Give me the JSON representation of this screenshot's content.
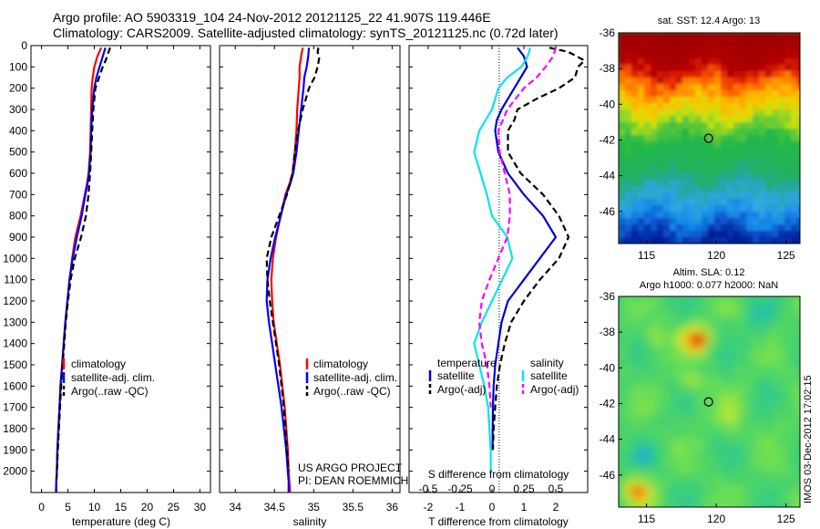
{
  "header": {
    "line1": "Argo profile: AO 5903319_104 24-Nov-2012 20121125_22 41.907S 119.446E",
    "line2": "Climatology: CARS2009. Satellite-adjusted climatology: synTS_20121125.nc (0.72d later)"
  },
  "colors": {
    "climatology": "#ff0000",
    "satellite": "#0000ff",
    "argo": "#000000",
    "t_satellite": "#0000cc",
    "s_satellite": "#00e5ee",
    "s_argo": "#ff00ff"
  },
  "chart_data": [
    {
      "type": "line",
      "xlabel": "temperature (deg C)",
      "ylabel": "",
      "xlim": [
        -2,
        32
      ],
      "ylim": [
        2100,
        0
      ],
      "xticks": [
        0,
        5,
        10,
        15,
        20,
        25,
        30
      ],
      "yticks": [
        0,
        100,
        200,
        300,
        400,
        500,
        600,
        700,
        800,
        900,
        1000,
        1100,
        1200,
        1300,
        1400,
        1500,
        1600,
        1700,
        1800,
        1900,
        2000
      ],
      "legend": {
        "position": "lower-middle",
        "entries": [
          "climatology",
          "satellite-adj. clim.",
          "Argo(..raw -QC)"
        ]
      },
      "series": [
        {
          "name": "climatology",
          "style": "solid",
          "color": "#ff0000",
          "x": [
            11.3,
            10.6,
            10.0,
            9.7,
            9.5,
            9.4,
            9.3,
            9.2,
            8.9,
            8.6,
            8.2,
            7.4,
            6.4,
            5.8,
            5.3,
            4.9,
            4.5,
            4.2,
            3.9,
            3.6,
            3.4,
            3.2,
            3.0,
            2.9,
            2.8,
            2.7
          ],
          "y": [
            10,
            50,
            100,
            150,
            200,
            300,
            400,
            500,
            600,
            650,
            700,
            800,
            900,
            1000,
            1100,
            1200,
            1300,
            1400,
            1500,
            1600,
            1700,
            1800,
            1900,
            2000,
            2050,
            2100
          ]
        },
        {
          "name": "satellite-adj. clim.",
          "style": "solid",
          "color": "#0000ff",
          "x": [
            12.1,
            11.6,
            11.0,
            10.4,
            10.0,
            9.6,
            9.4,
            9.3,
            9.0,
            8.7,
            8.3,
            7.6,
            6.7,
            5.9,
            5.3,
            4.9,
            4.5,
            4.2,
            3.9,
            3.6,
            3.4,
            3.2,
            3.0,
            2.9,
            2.8,
            2.8
          ],
          "y": [
            10,
            50,
            100,
            150,
            200,
            300,
            400,
            500,
            600,
            650,
            700,
            800,
            900,
            1000,
            1100,
            1200,
            1300,
            1400,
            1500,
            1600,
            1700,
            1800,
            1900,
            2000,
            2050,
            2100
          ]
        },
        {
          "name": "Argo(..raw -QC)",
          "style": "dashed",
          "color": "#000000",
          "x": [
            13.0,
            12.7,
            12.3,
            11.6,
            10.9,
            10.2,
            9.8,
            9.6,
            9.4,
            9.2,
            8.9,
            8.4,
            7.5,
            6.3,
            5.5,
            5.0,
            4.6,
            4.3,
            4.0,
            3.7,
            3.5,
            3.3,
            3.1,
            2.9,
            2.8
          ],
          "y": [
            10,
            30,
            60,
            100,
            150,
            200,
            300,
            400,
            500,
            600,
            700,
            800,
            900,
            1000,
            1100,
            1200,
            1300,
            1400,
            1500,
            1600,
            1700,
            1800,
            1900,
            2000,
            2050
          ]
        }
      ]
    },
    {
      "type": "line",
      "xlabel": "salinity",
      "ylabel": "",
      "xlim": [
        33.8,
        36.1
      ],
      "ylim": [
        2100,
        0
      ],
      "xticks": [
        34,
        34.5,
        35,
        35.5,
        36
      ],
      "legend": {
        "position": "lower-middle",
        "entries": [
          "climatology",
          "satellite-adj. clim.",
          "Argo(..raw -QC)"
        ]
      },
      "annotation": [
        "US ARGO PROJECT",
        "PI: DEAN ROEMMICH"
      ],
      "series": [
        {
          "name": "climatology",
          "style": "solid",
          "color": "#ff0000",
          "x": [
            34.86,
            34.84,
            34.82,
            34.82,
            34.81,
            34.79,
            34.78,
            34.76,
            34.73,
            34.69,
            34.64,
            34.58,
            34.52,
            34.48,
            34.46,
            34.47,
            34.49,
            34.53,
            34.57,
            34.6,
            34.63,
            34.65,
            34.67,
            34.68,
            34.69,
            34.7
          ],
          "y": [
            10,
            50,
            100,
            150,
            200,
            300,
            400,
            500,
            600,
            650,
            700,
            800,
            900,
            1000,
            1100,
            1200,
            1300,
            1400,
            1500,
            1600,
            1700,
            1800,
            1900,
            2000,
            2050,
            2100
          ]
        },
        {
          "name": "satellite-adj. clim.",
          "style": "solid",
          "color": "#0000ff",
          "x": [
            34.94,
            34.93,
            34.91,
            34.88,
            34.87,
            34.84,
            34.81,
            34.78,
            34.74,
            34.7,
            34.65,
            34.58,
            34.51,
            34.45,
            34.41,
            34.4,
            34.43,
            34.47,
            34.51,
            34.55,
            34.59,
            34.62,
            34.65,
            34.67,
            34.68,
            34.68
          ],
          "y": [
            10,
            50,
            100,
            150,
            200,
            300,
            400,
            500,
            600,
            650,
            700,
            800,
            900,
            1000,
            1100,
            1200,
            1300,
            1400,
            1500,
            1600,
            1700,
            1800,
            1900,
            2000,
            2050,
            2100
          ]
        },
        {
          "name": "Argo(..raw -QC)",
          "style": "dashed",
          "color": "#000000",
          "x": [
            35.06,
            35.05,
            35.07,
            35.05,
            35.01,
            34.94,
            34.86,
            34.8,
            34.76,
            34.73,
            34.66,
            34.56,
            34.46,
            34.4,
            34.41,
            34.44,
            34.48,
            34.52,
            34.56,
            34.59,
            34.62,
            34.64,
            34.66,
            34.68
          ],
          "y": [
            10,
            30,
            60,
            100,
            150,
            200,
            300,
            400,
            500,
            600,
            700,
            800,
            900,
            1000,
            1100,
            1200,
            1300,
            1400,
            1500,
            1600,
            1700,
            1800,
            1900,
            2000
          ]
        }
      ]
    },
    {
      "type": "line",
      "xlabel": "T difference from climatology",
      "xlabel_top": "S difference from climatology",
      "ylabel": "",
      "xlim": [
        -2.6,
        3.0
      ],
      "ylim": [
        2100,
        0
      ],
      "xticks": [
        -2,
        -1,
        0,
        1,
        2
      ],
      "xticks_secondary": {
        "labels": [
          "-0.5",
          "-0.25",
          "0",
          "0.25",
          "0.5"
        ],
        "values": [
          -0.5,
          -0.25,
          0,
          0.25,
          0.5
        ],
        "t_per_s": 4
      },
      "legend": {
        "position": "lower",
        "groups": [
          {
            "title": "temperature",
            "entries": [
              "satellite",
              "Argo(-adj)"
            ]
          },
          {
            "title": "salinity",
            "entries": [
              "satellite",
              "Argo(-adj)"
            ]
          }
        ]
      },
      "series": [
        {
          "name": "satellite",
          "group": "temperature",
          "style": "solid",
          "color": "#0000cc",
          "x": [
            0.8,
            1.0,
            1.1,
            0.9,
            0.7,
            0.5,
            0.3,
            0.15,
            0.1,
            0.2,
            0.5,
            1.0,
            1.6,
            2.0,
            1.5,
            1.0,
            0.5,
            0.3,
            0.2,
            0.1,
            0.05,
            0.03,
            0.02,
            0.02
          ],
          "y": [
            10,
            50,
            100,
            150,
            200,
            250,
            300,
            350,
            400,
            500,
            600,
            700,
            800,
            900,
            1000,
            1100,
            1200,
            1300,
            1400,
            1500,
            1600,
            1700,
            1800,
            1900
          ]
        },
        {
          "name": "Argo(-adj)",
          "group": "temperature",
          "style": "dashed",
          "color": "#000000",
          "x": [
            1.8,
            2.4,
            2.9,
            2.7,
            2.6,
            2.1,
            1.4,
            0.8,
            0.7,
            0.5,
            0.5,
            0.9,
            1.6,
            2.1,
            2.4,
            2.1,
            1.5,
            1.0,
            0.6,
            0.4,
            0.25,
            0.15,
            0.1,
            0.05,
            0.03
          ],
          "y": [
            10,
            30,
            70,
            100,
            150,
            200,
            250,
            300,
            350,
            400,
            500,
            600,
            700,
            800,
            900,
            1000,
            1100,
            1200,
            1300,
            1400,
            1500,
            1600,
            1700,
            1800,
            1900
          ]
        },
        {
          "name": "satellite",
          "group": "salinity",
          "style": "solid",
          "color": "#00e5ee",
          "x": [
            0.3,
            0.28,
            0.23,
            0.12,
            0.05,
            0.0,
            -0.1,
            -0.14,
            -0.09,
            -0.04,
            0.0,
            0.12,
            0.16,
            0.08,
            0.0,
            -0.08,
            -0.14,
            -0.1,
            -0.06,
            -0.03,
            -0.02,
            -0.01,
            -0.01
          ],
          "y": [
            10,
            50,
            100,
            150,
            200,
            300,
            400,
            500,
            600,
            700,
            800,
            900,
            1000,
            1100,
            1200,
            1300,
            1400,
            1500,
            1600,
            1700,
            1800,
            1900,
            2000
          ]
        },
        {
          "name": "Argo(-adj)",
          "group": "salinity",
          "style": "dashed",
          "color": "#ff00ff",
          "x": [
            0.5,
            0.48,
            0.42,
            0.35,
            0.25,
            0.12,
            0.05,
            0.06,
            0.1,
            0.14,
            0.14,
            0.12,
            0.05,
            -0.02,
            -0.08,
            -0.1,
            -0.08,
            -0.04,
            -0.02,
            -0.01
          ],
          "y": [
            10,
            50,
            100,
            150,
            200,
            300,
            400,
            500,
            600,
            700,
            800,
            900,
            1000,
            1100,
            1200,
            1300,
            1400,
            1500,
            1600,
            1700
          ]
        }
      ]
    },
    {
      "type": "heatmap",
      "title": "sat. SST: 12.4  Argo: 13",
      "xlim": [
        113,
        126
      ],
      "ylim": [
        -47.8,
        -36
      ],
      "xticks": [
        115,
        120,
        125
      ],
      "yticks": [
        -36,
        -38,
        -40,
        -42,
        -44,
        -46
      ],
      "marker": {
        "lon": 119.446,
        "lat": -41.907
      }
    },
    {
      "type": "heatmap",
      "title": "Altim. SLA: 0.12",
      "subtitle": "Argo h1000: 0.077 h2000: NaN",
      "xlim": [
        113,
        126
      ],
      "ylim": [
        -47.8,
        -36
      ],
      "xticks": [
        115,
        120,
        125
      ],
      "yticks": [
        -36,
        -38,
        -40,
        -42,
        -44,
        -46
      ],
      "marker": {
        "lon": 119.446,
        "lat": -41.907
      }
    }
  ],
  "footer": {
    "stamp": "IMOS 03-Dec-2012 17:02:15"
  }
}
